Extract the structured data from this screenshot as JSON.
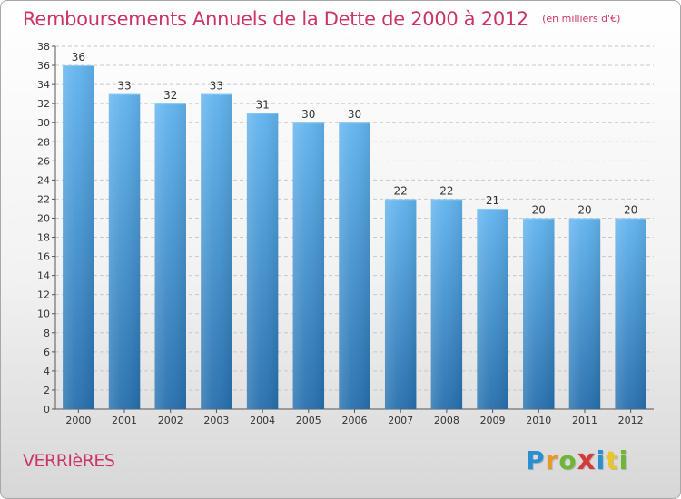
{
  "title": "Remboursements Annuels de la Dette de 2000 à 2012",
  "unit_note": "(en milliers d'€)",
  "commune": "VERRIèRES",
  "logo_text": "Proxiti",
  "colors": {
    "title": "#cc3366",
    "bar_top": "#62b4ee",
    "bar_bottom": "#2670ad",
    "grid": "#c8c8c8",
    "axis": "#555555"
  },
  "chart_data": {
    "type": "bar",
    "title": "Remboursements Annuels de la Dette de 2000 à 2012",
    "xlabel": "",
    "ylabel": "(en milliers d'€)",
    "categories": [
      "2000",
      "2001",
      "2002",
      "2003",
      "2004",
      "2005",
      "2006",
      "2007",
      "2008",
      "2009",
      "2010",
      "2011",
      "2012"
    ],
    "values": [
      36,
      33,
      32,
      33,
      31,
      30,
      30,
      22,
      22,
      21,
      20,
      20,
      20
    ],
    "ylim": [
      0,
      38
    ],
    "ytick_step": 2,
    "grid": true
  }
}
